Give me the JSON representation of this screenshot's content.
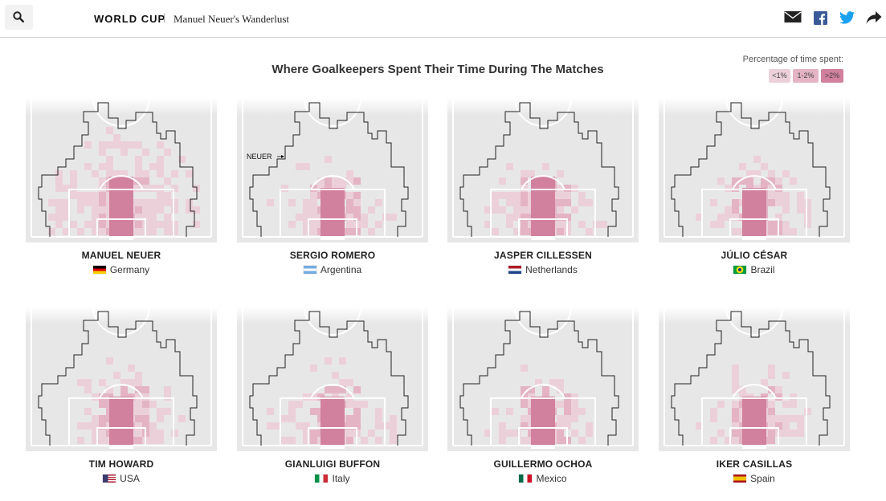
{
  "header": {
    "section_label": "WORLD CUP",
    "separator": "|",
    "page_title": "Manuel Neuer's Wanderlust",
    "share_icons": [
      "email-icon",
      "facebook-icon",
      "twitter-icon",
      "share-arrow-icon"
    ]
  },
  "main": {
    "headline": "Where Goalkeepers Spent Their Time During The Matches"
  },
  "legend": {
    "title": "Percentage of time spent:",
    "items": [
      {
        "label": "<1%",
        "color": "#ecd0d9"
      },
      {
        "label": "1-2%",
        "color": "#e4b4c4"
      },
      {
        "label": ">2%",
        "color": "#d1809d"
      }
    ]
  },
  "annotation": {
    "neuer_label": "NEUER"
  },
  "colors": {
    "pitch": "#e7e7e7",
    "low": "#ecd0d9",
    "mid": "#e4b4c4",
    "high": "#d1809d",
    "neuer_outline": "#222222"
  },
  "players": [
    {
      "name": "MANUEL NEUER",
      "country": "Germany",
      "flag": "germany"
    },
    {
      "name": "SERGIO ROMERO",
      "country": "Argentina",
      "flag": "argentina"
    },
    {
      "name": "JASPER CILLESSEN",
      "country": "Netherlands",
      "flag": "netherlands"
    },
    {
      "name": "JÚLIO CÉSAR",
      "country": "Brazil",
      "flag": "brazil"
    },
    {
      "name": "TIM HOWARD",
      "country": "USA",
      "flag": "usa"
    },
    {
      "name": "GIANLUIGI BUFFON",
      "country": "Italy",
      "flag": "italy"
    },
    {
      "name": "GUILLERMO OCHOA",
      "country": "Mexico",
      "flag": "mexico"
    },
    {
      "name": "IKER CASILLAS",
      "country": "Spain",
      "flag": "spain"
    }
  ]
}
